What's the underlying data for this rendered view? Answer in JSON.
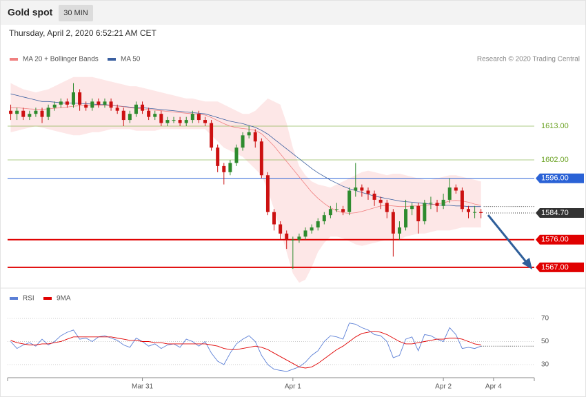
{
  "chart_data": [
    {
      "type": "candlestick",
      "title": "Gold spot",
      "interval": "30 MIN",
      "subtitle": "Thursday, April 2, 2020 6:52:21 AM CET",
      "source": "Research © 2020 Trading Central",
      "ylim": [
        1561,
        1631
      ],
      "up_color": "#2e8b2e",
      "down_color": "#cc1111",
      "open": [
        1618,
        1617,
        1618,
        1616,
        1617,
        1618,
        1616,
        1619,
        1620,
        1621,
        1620,
        1624,
        1620,
        1619,
        1621,
        1620,
        1621,
        1619,
        1618,
        1615,
        1617,
        1620,
        1618,
        1616,
        1617,
        1614,
        1615,
        1615,
        1614,
        1615,
        1617,
        1615,
        1614,
        1606,
        1600,
        1598,
        1601,
        1606,
        1610,
        1611,
        1608,
        1597,
        1585,
        1581,
        1578,
        1576,
        1576,
        1577,
        1579,
        1580,
        1582,
        1584,
        1586,
        1586,
        1585,
        1592,
        1593,
        1592,
        1591,
        1589,
        1588,
        1585,
        1578,
        1580,
        1586,
        1587,
        1582,
        1588,
        1588,
        1587,
        1589,
        1593,
        1592,
        1586,
        1585,
        1585,
        null,
        null,
        null,
        null,
        null,
        null,
        null,
        null
      ],
      "high": [
        1620,
        1619,
        1619,
        1618,
        1619,
        1619,
        1620,
        1621,
        1622,
        1622,
        1627,
        1625,
        1621,
        1622,
        1622,
        1622,
        1622,
        1620,
        1619,
        1618,
        1621,
        1621,
        1619,
        1618,
        1618,
        1616,
        1616,
        1616,
        1616,
        1618,
        1618,
        1616,
        1615,
        1607,
        1601,
        1602,
        1607,
        1611,
        1613,
        1612,
        1609,
        1598,
        1586,
        1582,
        1579,
        1577,
        1578,
        1580,
        1581,
        1583,
        1585,
        1587,
        1588,
        1587,
        1593,
        1601,
        1594,
        1593,
        1592,
        1590,
        1589,
        1586,
        1582,
        1589,
        1588,
        1588,
        1589,
        1590,
        1589,
        1591,
        1596,
        1594,
        1593,
        1587,
        1587,
        1586,
        null,
        null,
        null,
        null,
        null,
        null,
        null,
        null
      ],
      "low": [
        1615,
        1615,
        1615,
        1615,
        1616,
        1614,
        1615,
        1618,
        1619,
        1619,
        1619,
        1618,
        1618,
        1618,
        1619,
        1619,
        1618,
        1617,
        1613,
        1614,
        1616,
        1617,
        1615,
        1615,
        1613,
        1613,
        1614,
        1613,
        1613,
        1614,
        1614,
        1613,
        1605,
        1598,
        1594,
        1597,
        1600,
        1605,
        1609,
        1606,
        1596,
        1584,
        1579,
        1576,
        1573,
        1566.5,
        1575,
        1576,
        1578,
        1579,
        1581,
        1583,
        1585,
        1584,
        1584,
        1590,
        1590,
        1589,
        1587,
        1586,
        1583,
        1570.5,
        1576,
        1579,
        1584,
        1578,
        1581,
        1586,
        1585,
        1586,
        1588,
        1591,
        1585,
        1583,
        1583,
        1583,
        null,
        null,
        null,
        null,
        null,
        null,
        null,
        null
      ],
      "close": [
        1617,
        1618,
        1616,
        1617,
        1618,
        1616,
        1619,
        1620,
        1621,
        1620,
        1624,
        1620,
        1619,
        1621,
        1620,
        1621,
        1619,
        1618,
        1615,
        1617,
        1620,
        1618,
        1616,
        1617,
        1614,
        1615,
        1615,
        1614,
        1615,
        1617,
        1615,
        1614,
        1606,
        1600,
        1598,
        1601,
        1606,
        1610,
        1611,
        1608,
        1597,
        1585,
        1581,
        1578,
        1576,
        1576,
        1577,
        1579,
        1580,
        1582,
        1584,
        1586,
        1586,
        1585,
        1592,
        1593,
        1592,
        1591,
        1589,
        1588,
        1585,
        1578,
        1580,
        1586,
        1587,
        1582,
        1588,
        1588,
        1587,
        1589,
        1593,
        1592,
        1586,
        1585,
        1585,
        1584.7,
        null,
        null,
        null,
        null,
        null,
        null,
        null,
        null
      ],
      "series": [
        {
          "name": "MA 20 + Bollinger Bands",
          "color": "#f08080",
          "band_color": "#fde3e3",
          "values": [
            1619,
            1619,
            1618.8,
            1618.6,
            1618.5,
            1618.5,
            1618.6,
            1618.8,
            1619,
            1619.2,
            1619.5,
            1619.6,
            1619.7,
            1619.8,
            1619.8,
            1619.8,
            1619.7,
            1619.5,
            1619.3,
            1619,
            1618.8,
            1618.6,
            1618.4,
            1618.2,
            1618,
            1617.8,
            1617.6,
            1617.4,
            1617.2,
            1617,
            1616.8,
            1616.6,
            1615.8,
            1614.8,
            1613.8,
            1613,
            1612.5,
            1612.2,
            1612,
            1611.6,
            1610.5,
            1608.6,
            1606.5,
            1604,
            1601.5,
            1599,
            1596.5,
            1594,
            1591.5,
            1589.5,
            1587.8,
            1586.4,
            1585.4,
            1584.8,
            1584.6,
            1584.8,
            1585.2,
            1585.8,
            1586.4,
            1587,
            1587.2,
            1587,
            1586.8,
            1586.8,
            1587,
            1587,
            1587.2,
            1587.4,
            1587.6,
            1588,
            1588.6,
            1588.8,
            1588.6,
            1588.2,
            1587.6,
            1587.2,
            null,
            null,
            null,
            null,
            null,
            null,
            null,
            null
          ],
          "upper": [
            1627,
            1626,
            1625,
            1624.5,
            1624,
            1624.5,
            1625,
            1626,
            1627,
            1628,
            1629,
            1629,
            1629,
            1629,
            1628.5,
            1628,
            1627.5,
            1627,
            1626.5,
            1626,
            1626,
            1625.5,
            1625,
            1624.5,
            1624,
            1623.5,
            1623,
            1622.5,
            1622,
            1622,
            1621.5,
            1621,
            1621,
            1621,
            1620,
            1619,
            1618,
            1617,
            1617,
            1618,
            1620,
            1622,
            1621,
            1620,
            1614,
            1606,
            1600,
            1597,
            1595,
            1594,
            1593.5,
            1593,
            1594,
            1595,
            1596,
            1597,
            1598,
            1598.5,
            1598,
            1597.5,
            1597,
            1597.5,
            1597.5,
            1597,
            1596.5,
            1596,
            1595.5,
            1595.5,
            1596,
            1596.5,
            1597,
            1597,
            1596.5,
            1596,
            1595.5,
            1595,
            null,
            null,
            null,
            null,
            null,
            null,
            null,
            null
          ],
          "lower": [
            1611,
            1611.5,
            1612,
            1612.5,
            1613,
            1612.5,
            1612,
            1611.5,
            1611,
            1610.5,
            1610,
            1610,
            1610.5,
            1611,
            1611,
            1611.5,
            1612,
            1612,
            1612,
            1612,
            1611.5,
            1611.5,
            1611.5,
            1611.5,
            1612,
            1612,
            1612,
            1612,
            1612,
            1612,
            1612,
            1612,
            1610,
            1608,
            1606,
            1605,
            1604,
            1603,
            1601,
            1599,
            1597,
            1592,
            1586,
            1579,
            1572,
            1565,
            1562,
            1563,
            1567,
            1572,
            1575,
            1577,
            1577,
            1576.5,
            1575.5,
            1574.5,
            1574,
            1574.5,
            1575,
            1575.5,
            1576,
            1576,
            1576,
            1577,
            1577.5,
            1578,
            1578,
            1578.5,
            1579,
            1579,
            1579,
            1579.5,
            1580,
            1580,
            1580,
            1580,
            null,
            null,
            null,
            null,
            null,
            null,
            null,
            null
          ]
        },
        {
          "name": "MA 50",
          "color": "#3a5fa0",
          "values": [
            1623.5,
            1623,
            1622.5,
            1622,
            1621.5,
            1621,
            1621,
            1620.8,
            1620.6,
            1620.5,
            1620.5,
            1620.4,
            1620.3,
            1620.2,
            1620,
            1620,
            1619.8,
            1619.6,
            1619.4,
            1619.2,
            1619,
            1619,
            1618.8,
            1618.6,
            1618.4,
            1618.2,
            1618,
            1617.8,
            1617.6,
            1617.4,
            1617.2,
            1617,
            1616.4,
            1615.8,
            1615.2,
            1614.6,
            1614.2,
            1613.8,
            1613.2,
            1612.6,
            1611.6,
            1610.4,
            1608.8,
            1607.2,
            1605.6,
            1604,
            1602.4,
            1600.8,
            1599.2,
            1597.8,
            1596.6,
            1595.4,
            1594.4,
            1593.4,
            1592.6,
            1592,
            1591.4,
            1590.8,
            1590.2,
            1589.8,
            1589.4,
            1589,
            1588.6,
            1588.4,
            1588.2,
            1588,
            1587.8,
            1587.6,
            1587.4,
            1587.2,
            1587.2,
            1587,
            1587,
            1586.8,
            1586.8,
            1586.8,
            null,
            null,
            null,
            null,
            null,
            null,
            null,
            null
          ]
        }
      ],
      "levels": [
        {
          "value": 1613,
          "label": "1613.00",
          "color": "#6aa121",
          "kind": "line"
        },
        {
          "value": 1602,
          "label": "1602.00",
          "color": "#6aa121",
          "kind": "line"
        },
        {
          "value": 1596,
          "label": "1596.00",
          "color": "#2a62d6",
          "kind": "box"
        },
        {
          "value": 1584.7,
          "label": "1584.70",
          "color": "#333333",
          "kind": "current"
        },
        {
          "value": 1576,
          "label": "1576.00",
          "color": "#e00000",
          "kind": "box"
        },
        {
          "value": 1567,
          "label": "1567.00",
          "color": "#e00000",
          "kind": "box"
        }
      ]
    },
    {
      "type": "line",
      "ylim": [
        20,
        80
      ],
      "yticks": [
        30,
        50,
        70
      ],
      "grid": true,
      "categories": [
        null,
        null,
        null,
        null,
        null,
        null,
        null,
        null,
        null,
        null,
        null,
        null,
        null,
        null,
        null,
        null,
        null,
        null,
        null,
        null,
        null,
        "Mar 31",
        null,
        null,
        null,
        null,
        null,
        null,
        null,
        null,
        null,
        null,
        null,
        null,
        null,
        null,
        null,
        null,
        null,
        null,
        null,
        null,
        null,
        null,
        null,
        "Apr 1",
        null,
        null,
        null,
        null,
        null,
        null,
        null,
        null,
        null,
        null,
        null,
        null,
        null,
        null,
        null,
        null,
        null,
        null,
        null,
        null,
        null,
        null,
        null,
        "Apr 2",
        null,
        null,
        null,
        null,
        null,
        null,
        null,
        "Apr 4",
        null,
        null,
        null,
        null,
        null,
        null
      ],
      "series": [
        {
          "name": "RSI",
          "color": "#5b7fd6",
          "values": [
            50,
            44,
            47,
            49,
            46,
            52,
            47,
            50,
            55,
            58,
            60,
            52,
            53,
            50,
            54,
            55,
            53,
            51,
            47,
            45,
            53,
            50,
            46,
            48,
            44,
            47,
            48,
            45,
            52,
            50,
            46,
            50,
            40,
            33,
            30,
            40,
            48,
            52,
            55,
            50,
            38,
            30,
            26,
            25,
            24,
            26,
            28,
            32,
            38,
            42,
            50,
            55,
            54,
            52,
            66,
            65,
            62,
            60,
            56,
            55,
            50,
            36,
            38,
            52,
            54,
            42,
            56,
            55,
            52,
            50,
            62,
            56,
            44,
            45,
            44,
            46,
            null,
            null,
            null,
            null,
            null,
            null,
            null,
            null
          ]
        },
        {
          "name": "9MA",
          "color": "#e00000",
          "values": [
            51,
            49,
            48,
            47,
            47,
            48,
            48,
            49,
            50,
            52,
            54,
            54,
            54,
            54,
            54,
            54,
            54,
            53,
            52,
            51,
            51,
            50,
            50,
            49,
            49,
            48,
            48,
            48,
            48,
            48,
            48,
            48,
            47,
            46,
            44,
            43,
            43,
            44,
            45,
            46,
            45,
            43,
            40,
            37,
            34,
            31,
            28,
            27,
            28,
            31,
            35,
            39,
            43,
            46,
            50,
            54,
            57,
            58,
            59,
            58,
            56,
            53,
            50,
            48,
            48,
            49,
            50,
            51,
            52,
            52,
            53,
            53,
            52,
            50,
            48,
            47,
            null,
            null,
            null,
            null,
            null,
            null,
            null,
            null
          ]
        }
      ]
    }
  ]
}
